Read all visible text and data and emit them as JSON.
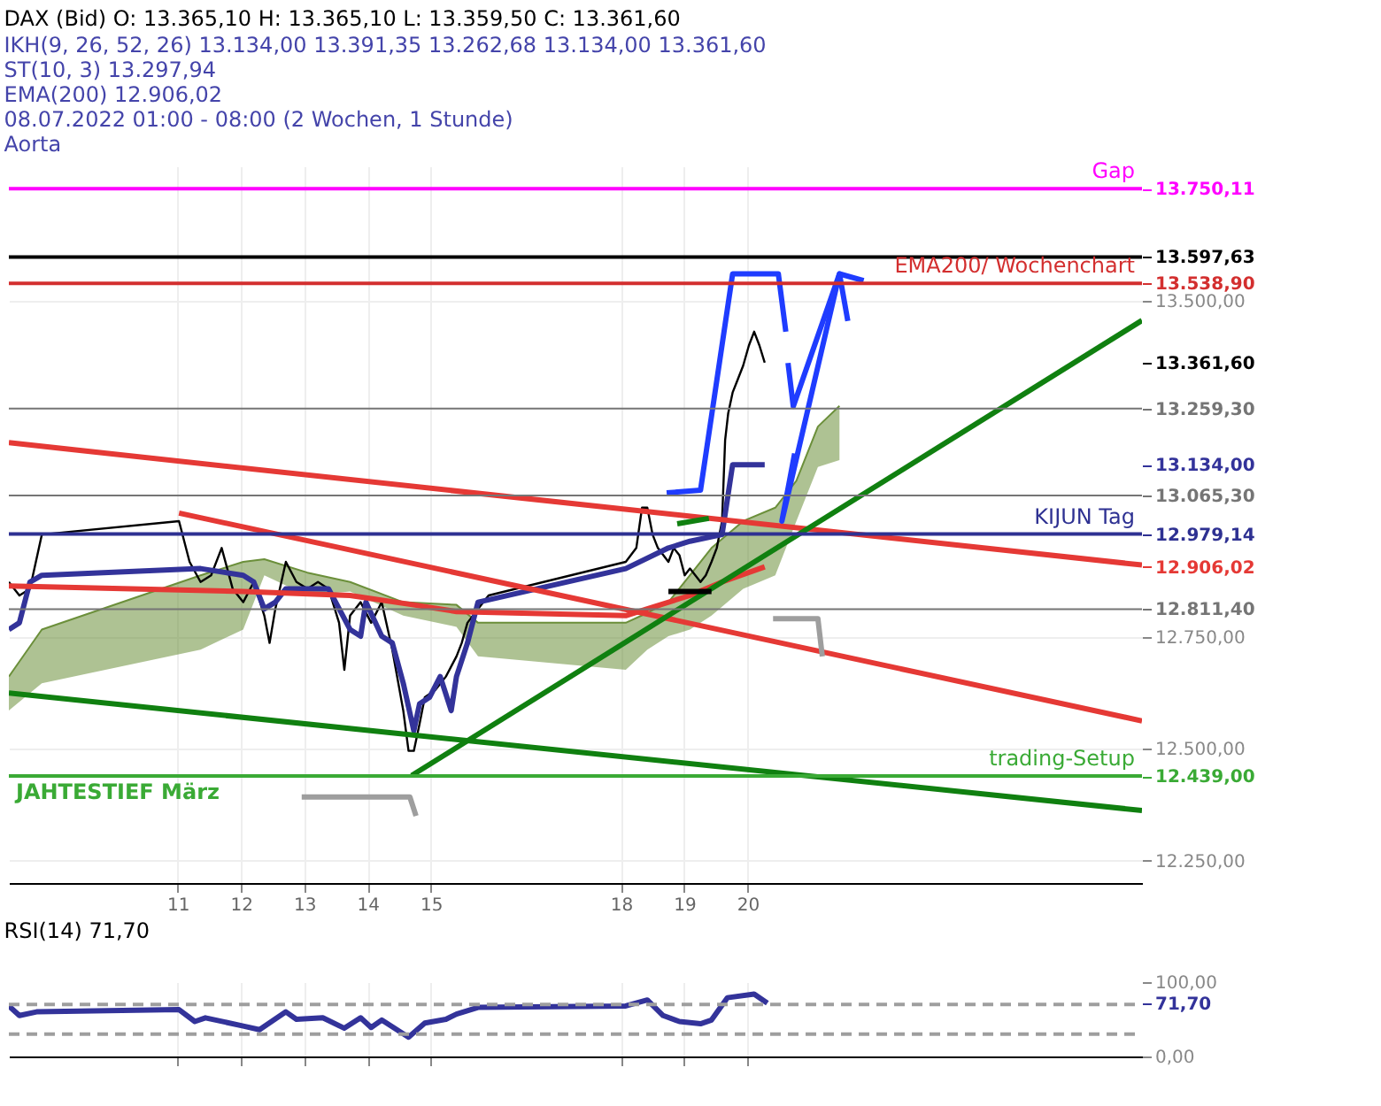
{
  "chart_data": [
    {
      "type": "line",
      "title": "DAX (Bid)  O: 13.365,10  H: 13.365,10  L: 13.359,50  C: 13.361,60",
      "annotations": [
        "IKH(9, 26, 52, 26)  13.134,00  13.391,35  13.262,68  13.134,00  13.361,60",
        "ST(10, 3)  13.297,94",
        "EMA(200)  12.906,02",
        "08.07.2022 01:00 - 08:00  (2 Wochen, 1 Stunde)",
        "Aorta"
      ],
      "xlim": [
        "2022-07-08T08:00",
        "2022-07-26T05:30"
      ],
      "ylim": [
        12200,
        13800
      ],
      "xticks": [
        {
          "value": "2022-07-11",
          "label": "11"
        },
        {
          "value": "2022-07-12",
          "label": "12"
        },
        {
          "value": "2022-07-13",
          "label": "13"
        },
        {
          "value": "2022-07-14",
          "label": "14"
        },
        {
          "value": "2022-07-15",
          "label": "15"
        },
        {
          "value": "2022-07-18",
          "label": "18"
        },
        {
          "value": "2022-07-19",
          "label": "19"
        },
        {
          "value": "2022-07-20",
          "label": "20"
        }
      ],
      "yticks": [
        {
          "value": 12250,
          "label": "12.250,00"
        },
        {
          "value": 12439,
          "label": "12.439,00"
        },
        {
          "value": 12500,
          "label": "12.500,00"
        },
        {
          "value": 12750,
          "label": "12.750,00"
        },
        {
          "value": 12811.4,
          "label": "12.811,40"
        },
        {
          "value": 12906.02,
          "label": "12.906,02"
        },
        {
          "value": 12979.14,
          "label": "12.979,14"
        },
        {
          "value": 13065.3,
          "label": "13.065,30"
        },
        {
          "value": 13134,
          "label": "13.134,00"
        },
        {
          "value": 13259.3,
          "label": "13.259,30"
        },
        {
          "value": 13361.6,
          "label": "13.361,60"
        },
        {
          "value": 13500,
          "label": "13.500,00"
        },
        {
          "value": 13538.9,
          "label": "13.538,90"
        },
        {
          "value": 13597.63,
          "label": "13.597,63"
        },
        {
          "value": 13750.11,
          "label": "13.750,11"
        }
      ],
      "grid": true,
      "ref_lines": [
        {
          "axis": "y",
          "value": 13750.11,
          "label": "Gap",
          "color": "#ff00ff"
        },
        {
          "axis": "y",
          "value": 13597.63,
          "label": null,
          "color": "#000000"
        },
        {
          "axis": "y",
          "value": 13538.9,
          "label": "EMA200/ Wochenchart",
          "color": "#d32f2f"
        },
        {
          "axis": "y",
          "value": 13259.3,
          "label": null,
          "color": "#757575"
        },
        {
          "axis": "y",
          "value": 13065.3,
          "label": null,
          "color": "#757575"
        },
        {
          "axis": "y",
          "value": 12979.14,
          "label": "KIJUN Tag",
          "color": "#2e3192"
        },
        {
          "axis": "y",
          "value": 12811.4,
          "label": null,
          "color": "#757575"
        },
        {
          "axis": "y",
          "value": 12439,
          "label": "JAHTESTIEF März",
          "color": "#3aaa35"
        },
        {
          "axis": "y",
          "value": 12439,
          "label": "trading-Setup",
          "color": "#3aaa35"
        }
      ],
      "series": [
        {
          "type": "line",
          "color": "#6b8f3a",
          "x": [
            "2022-07-08T08:00",
            "2022-07-08T20:30",
            "2022-07-11T08:40",
            "2022-07-12T00:50",
            "2022-07-12T08:50",
            "2022-07-13T01:10",
            "2022-07-13T17:20",
            "2022-07-14T13:30",
            "2022-07-15T09:40",
            "2022-07-15T17:50",
            "2022-07-18T01:50",
            "2022-07-18T10:00",
            "2022-07-18T18:00",
            "2022-07-19T02:10",
            "2022-07-19T10:20",
            "2022-07-19T22:20",
            "2022-07-20T10:30",
            "2022-07-20T18:30",
            "2022-07-21T02:40",
            "2022-07-21T10:50"
          ],
          "values": [
            12661,
            12766,
            12887,
            12917,
            12923,
            12893,
            12872,
            12827,
            12821,
            12781,
            12781,
            12803,
            12827,
            12887,
            12948,
            13008,
            13038,
            13098,
            13219,
            13265
          ],
          "upper": [
            12661,
            12766,
            12887,
            12917,
            12923,
            12893,
            12872,
            12827,
            12821,
            12781,
            12781,
            12803,
            12827,
            12887,
            12948,
            13008,
            13038,
            13098,
            13219,
            13265
          ],
          "lower": [
            12585,
            12646,
            12721,
            12766,
            12887,
            12842,
            12851,
            12797,
            12772,
            12706,
            12676,
            12721,
            12751,
            12766,
            12797,
            12857,
            12887,
            13008,
            13129,
            13144
          ]
        },
        {
          "color": "#000000",
          "x": [
            "2022-07-08T08:00",
            "2022-07-08T12:00",
            "2022-07-08T16:00",
            "2022-07-08T20:30",
            "2022-07-11T00:30",
            "2022-07-11T04:30",
            "2022-07-11T08:40",
            "2022-07-11T12:40",
            "2022-07-11T16:40",
            "2022-07-11T20:50",
            "2022-07-12T00:50",
            "2022-07-12T04:50",
            "2022-07-12T08:50",
            "2022-07-12T10:50",
            "2022-07-12T13:00",
            "2022-07-12T17:00",
            "2022-07-12T21:00",
            "2022-07-13T01:10",
            "2022-07-13T05:10",
            "2022-07-13T09:10",
            "2022-07-13T13:10",
            "2022-07-13T15:10",
            "2022-07-13T17:20",
            "2022-07-13T21:20",
            "2022-07-14T01:20",
            "2022-07-14T05:20",
            "2022-07-14T09:20",
            "2022-07-14T13:30",
            "2022-07-14T15:30",
            "2022-07-14T17:30",
            "2022-07-14T19:40",
            "2022-07-14T21:40",
            "2022-07-15T01:40",
            "2022-07-15T05:40",
            "2022-07-15T09:40",
            "2022-07-15T11:40",
            "2022-07-15T13:50",
            "2022-07-15T17:50",
            "2022-07-15T21:50",
            "2022-07-18T01:50",
            "2022-07-18T05:50",
            "2022-07-18T08:00",
            "2022-07-18T10:00",
            "2022-07-18T12:00",
            "2022-07-18T14:00",
            "2022-07-18T18:00",
            "2022-07-18T20:00",
            "2022-07-18T22:10",
            "2022-07-19T00:10",
            "2022-07-19T02:10",
            "2022-07-19T06:10",
            "2022-07-19T08:10",
            "2022-07-19T10:20",
            "2022-07-19T12:20",
            "2022-07-19T14:20",
            "2022-07-19T15:30",
            "2022-07-19T16:40",
            "2022-07-19T18:20",
            "2022-07-19T20:20",
            "2022-07-19T22:20",
            "2022-07-20T00:30",
            "2022-07-20T02:30",
            "2022-07-20T04:30",
            "2022-07-20T06:30"
          ],
          "values": [
            12872,
            12842,
            12857,
            12978,
            13008,
            12917,
            12872,
            12887,
            12948,
            12857,
            12827,
            12872,
            12797,
            12736,
            12812,
            12917,
            12872,
            12857,
            12872,
            12857,
            12781,
            12676,
            12797,
            12827,
            12781,
            12827,
            12721,
            12585,
            12495,
            12495,
            12555,
            12615,
            12631,
            12661,
            12706,
            12736,
            12781,
            12812,
            12842,
            12917,
            12948,
            13038,
            13038,
            12978,
            12948,
            12917,
            12948,
            12932,
            12887,
            12902,
            12872,
            12887,
            12917,
            12948,
            13008,
            13189,
            13249,
            13295,
            13325,
            13355,
            13400,
            13431,
            13400,
            13361.6
          ]
        },
        {
          "color": "#33339a",
          "x": [
            "2022-07-08T08:00",
            "2022-07-08T12:00",
            "2022-07-08T16:00",
            "2022-07-08T20:30",
            "2022-07-11T08:40",
            "2022-07-12T00:50",
            "2022-07-12T04:50",
            "2022-07-12T08:50",
            "2022-07-12T13:00",
            "2022-07-12T17:00",
            "2022-07-13T09:10",
            "2022-07-13T17:20",
            "2022-07-13T21:20",
            "2022-07-13T23:20",
            "2022-07-14T05:20",
            "2022-07-14T09:20",
            "2022-07-14T13:30",
            "2022-07-14T17:30",
            "2022-07-14T19:40",
            "2022-07-14T23:30",
            "2022-07-15T03:30",
            "2022-07-15T07:40",
            "2022-07-15T09:40",
            "2022-07-15T13:50",
            "2022-07-15T17:50",
            "2022-07-18T01:50",
            "2022-07-18T18:00",
            "2022-07-19T02:10",
            "2022-07-19T14:20",
            "2022-07-19T18:20",
            "2022-07-20T06:30"
          ],
          "values": [
            12766,
            12781,
            12872,
            12887,
            12902,
            12887,
            12872,
            12812,
            12827,
            12857,
            12857,
            12766,
            12751,
            12827,
            12751,
            12736,
            12646,
            12540,
            12600,
            12615,
            12661,
            12585,
            12661,
            12736,
            12827,
            12902,
            12948,
            12963,
            12978,
            13134,
            13134
          ]
        },
        {
          "color": "#e53935",
          "x": [
            "2022-07-08T08:00",
            "2022-07-12T00:50",
            "2022-07-13T17:20",
            "2022-07-14T17:30",
            "2022-07-15T09:40",
            "2022-07-18T01:50",
            "2022-07-18T10:00",
            "2022-07-19T02:10",
            "2022-07-19T14:20",
            "2022-07-20T06:30"
          ],
          "values": [
            12863,
            12851,
            12842,
            12821,
            12806,
            12797,
            12812,
            12842,
            12872,
            12906.02
          ]
        },
        {
          "color": "#e53935",
          "x": [
            "2022-07-08T08:00",
            "2022-07-26T05:30"
          ],
          "values": [
            13183,
            12910
          ]
        },
        {
          "color": "#e53935",
          "x": [
            "2022-07-11T00:30",
            "2022-07-26T05:30"
          ],
          "values": [
            13026,
            12562
          ]
        },
        {
          "color": "#108010",
          "x": [
            "2022-07-14T16:40",
            "2022-07-26T05:30"
          ],
          "values": [
            12440,
            13456
          ]
        },
        {
          "color": "#108010",
          "x": [
            "2022-07-08T08:00",
            "2022-07-26T05:30"
          ],
          "values": [
            12624,
            12362
          ]
        },
        {
          "color": "#1f3cff",
          "x": [
            "2022-07-18T17:20",
            "2022-07-19T06:10",
            "2022-07-19T18:20",
            "2022-07-20T11:40",
            "2022-07-20T14:30"
          ],
          "values": [
            13071,
            13077,
            13560,
            13560,
            13431
          ]
        },
        {
          "color": "#1f3cff",
          "x": [
            "2022-07-20T15:20",
            "2022-07-20T17:20",
            "2022-07-21T10:50",
            "2022-07-21T14:00"
          ],
          "values": [
            13361,
            13264,
            13560,
            13455
          ]
        },
        {
          "color": "#1f3cff",
          "x": [
            "2022-07-20T17:50",
            "2022-07-20T13:00",
            "2022-07-21T10:50",
            "2022-07-21T20:00"
          ],
          "values": [
            13159,
            13008,
            13560,
            13545
          ]
        },
        {
          "color": "#108010",
          "x": [
            "2022-07-18T21:20",
            "2022-07-19T09:20"
          ],
          "values": [
            13002,
            13014
          ]
        },
        {
          "color": "#000000",
          "x": [
            "2022-07-18T18:00",
            "2022-07-19T10:20"
          ],
          "values": [
            12851,
            12851
          ]
        },
        {
          "color": "#9e9e9e",
          "x": [
            "2022-07-12T23:00",
            "2022-07-14T16:00",
            "2022-07-14T18:20"
          ],
          "values": [
            12392,
            12392,
            12350
          ]
        },
        {
          "color": "#9e9e9e",
          "x": [
            "2022-07-20T09:40",
            "2022-07-21T02:40",
            "2022-07-21T04:20"
          ],
          "values": [
            12790,
            12790,
            12706
          ]
        }
      ]
    },
    {
      "type": "line",
      "title": "RSI(14)  71,70",
      "tick_labels": "y",
      "grid": "x",
      "xlim": [
        "2022-07-08T08:00",
        "2022-07-26T05:30"
      ],
      "ylim": [
        0,
        100
      ],
      "xticks": [
        {
          "value": "2022-07-11",
          "label": null
        },
        {
          "value": "2022-07-12",
          "label": null
        },
        {
          "value": "2022-07-13",
          "label": null
        },
        {
          "value": "2022-07-14",
          "label": null
        },
        {
          "value": "2022-07-15",
          "label": null
        },
        {
          "value": "2022-07-18",
          "label": null
        },
        {
          "value": "2022-07-19",
          "label": null
        },
        {
          "value": "2022-07-20",
          "label": null
        }
      ],
      "yticks": [
        {
          "value": 100,
          "label": "100,00"
        },
        {
          "value": 71.7,
          "label": "71,70"
        },
        {
          "value": 0,
          "label": "0,00"
        }
      ],
      "ref_lines": [
        {
          "axis": "y",
          "value": 70,
          "color": "#9e9e9e",
          "line_style": "dashed"
        },
        {
          "axis": "y",
          "value": 30,
          "color": "#9e9e9e",
          "line_style": "dashed"
        }
      ],
      "series": [
        {
          "color": "#33339a",
          "x": [
            "2022-07-08T08:00",
            "2022-07-08T12:00",
            "2022-07-08T18:30",
            "2022-07-11T00:30",
            "2022-07-11T06:30",
            "2022-07-11T10:30",
            "2022-07-12T00:50",
            "2022-07-12T07:00",
            "2022-07-12T17:00",
            "2022-07-12T21:00",
            "2022-07-13T07:00",
            "2022-07-13T15:10",
            "2022-07-13T21:20",
            "2022-07-14T01:20",
            "2022-07-14T05:20",
            "2022-07-14T15:30",
            "2022-07-14T21:40",
            "2022-07-15T05:40",
            "2022-07-15T09:40",
            "2022-07-15T17:50",
            "2022-07-18T01:50",
            "2022-07-18T10:00",
            "2022-07-18T16:00",
            "2022-07-18T22:10",
            "2022-07-19T06:10",
            "2022-07-19T10:20",
            "2022-07-19T16:20",
            "2022-07-20T02:30",
            "2022-07-20T07:30"
          ],
          "values": [
            68,
            55,
            60,
            63,
            47,
            52,
            41,
            36,
            60,
            50,
            52,
            38,
            52,
            39,
            49,
            26,
            45,
            50,
            57,
            66,
            68,
            76,
            55,
            47,
            44,
            49,
            79,
            84,
            71.7
          ]
        }
      ]
    }
  ]
}
